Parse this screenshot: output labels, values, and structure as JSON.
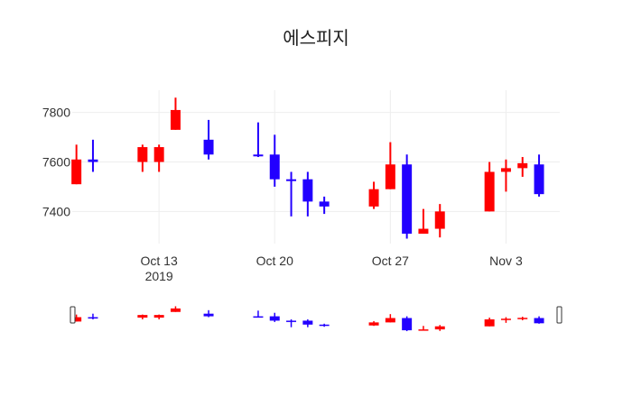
{
  "chart_data": {
    "type": "candlestick",
    "title": "에스피지",
    "xlabel": "",
    "ylabel": "",
    "ylim": [
      7270,
      7890
    ],
    "xlim": [
      "2019-10-08",
      "2019-11-06"
    ],
    "grid": true,
    "x_ticks": [
      {
        "date": "2019-10-13",
        "label": "Oct 13",
        "sublabel": "2019"
      },
      {
        "date": "2019-10-20",
        "label": "Oct 20",
        "sublabel": ""
      },
      {
        "date": "2019-10-27",
        "label": "Oct 27",
        "sublabel": ""
      },
      {
        "date": "2019-11-03",
        "label": "Nov 3",
        "sublabel": ""
      }
    ],
    "y_ticks": [
      7400,
      7600,
      7800
    ],
    "increasing_color": "#ff0000",
    "decreasing_color": "#2200ff",
    "candles": [
      {
        "date": "2019-10-08",
        "open": 7510,
        "high": 7670,
        "low": 7510,
        "close": 7610
      },
      {
        "date": "2019-10-09",
        "open": 7610,
        "high": 7690,
        "low": 7560,
        "close": 7600
      },
      {
        "date": "2019-10-12",
        "open": 7600,
        "high": 7670,
        "low": 7560,
        "close": 7660
      },
      {
        "date": "2019-10-13",
        "open": 7600,
        "high": 7670,
        "low": 7560,
        "close": 7660
      },
      {
        "date": "2019-10-14",
        "open": 7730,
        "high": 7860,
        "low": 7730,
        "close": 7810
      },
      {
        "date": "2019-10-16",
        "open": 7690,
        "high": 7770,
        "low": 7610,
        "close": 7630
      },
      {
        "date": "2019-10-19",
        "open": 7630,
        "high": 7760,
        "low": 7620,
        "close": 7625
      },
      {
        "date": "2019-10-20",
        "open": 7630,
        "high": 7710,
        "low": 7500,
        "close": 7530
      },
      {
        "date": "2019-10-21",
        "open": 7530,
        "high": 7560,
        "low": 7380,
        "close": 7525
      },
      {
        "date": "2019-10-22",
        "open": 7530,
        "high": 7560,
        "low": 7380,
        "close": 7440
      },
      {
        "date": "2019-10-23",
        "open": 7440,
        "high": 7460,
        "low": 7390,
        "close": 7420
      },
      {
        "date": "2019-10-26",
        "open": 7420,
        "high": 7520,
        "low": 7410,
        "close": 7490
      },
      {
        "date": "2019-10-27",
        "open": 7490,
        "high": 7680,
        "low": 7490,
        "close": 7590
      },
      {
        "date": "2019-10-28",
        "open": 7590,
        "high": 7630,
        "low": 7290,
        "close": 7310
      },
      {
        "date": "2019-10-29",
        "open": 7310,
        "high": 7410,
        "low": 7310,
        "close": 7330
      },
      {
        "date": "2019-10-30",
        "open": 7330,
        "high": 7430,
        "low": 7295,
        "close": 7400
      },
      {
        "date": "2019-11-02",
        "open": 7400,
        "high": 7600,
        "low": 7400,
        "close": 7560
      },
      {
        "date": "2019-11-03",
        "open": 7560,
        "high": 7610,
        "low": 7480,
        "close": 7575
      },
      {
        "date": "2019-11-04",
        "open": 7575,
        "high": 7620,
        "low": 7540,
        "close": 7595
      },
      {
        "date": "2019-11-05",
        "open": 7590,
        "high": 7630,
        "low": 7460,
        "close": 7470
      }
    ],
    "rangeslider": true
  }
}
